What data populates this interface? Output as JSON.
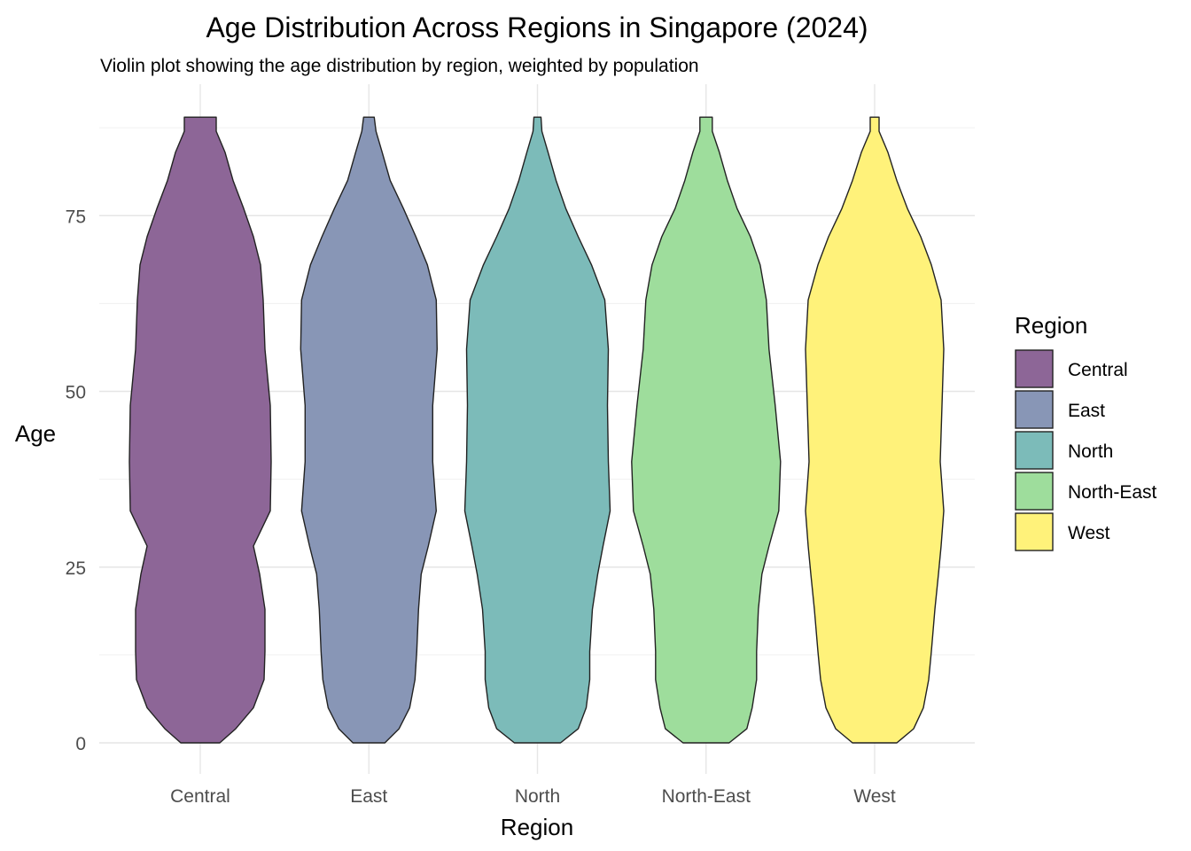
{
  "chart_data": {
    "type": "violin",
    "title": "Age Distribution Across Regions in Singapore (2024)",
    "subtitle": "Violin plot showing the age distribution by region, weighted by population",
    "xlabel": "Region",
    "ylabel": "Age",
    "categories": [
      "Central",
      "East",
      "North",
      "North-East",
      "West"
    ],
    "ylim": [
      -4,
      93
    ],
    "y_range": [
      0,
      89
    ],
    "yticks": [
      0,
      25,
      50,
      75
    ],
    "grid": true,
    "legend": {
      "title": "Region",
      "position": "right"
    },
    "colors": [
      "#8D6697",
      "#8896B6",
      "#7CBBB9",
      "#9EDD9C",
      "#FFF27A"
    ],
    "density_half_width_ages": [
      0,
      2,
      5,
      9,
      13,
      19,
      24,
      28,
      33,
      40,
      48,
      56,
      63,
      68,
      72,
      76,
      80,
      84,
      87,
      89
    ],
    "violins": [
      {
        "name": "Central",
        "half_width": [
          22,
          40,
          60,
          72,
          73,
          73,
          67,
          60,
          79,
          80,
          79,
          73,
          71,
          68,
          60,
          49,
          37,
          28,
          18,
          18
        ]
      },
      {
        "name": "East",
        "half_width": [
          18,
          34,
          46,
          52,
          54,
          56,
          59,
          67,
          76,
          72,
          72,
          77,
          76,
          66,
          53,
          39,
          24,
          15,
          8,
          6
        ]
      },
      {
        "name": "North",
        "half_width": [
          26,
          46,
          55,
          59,
          59,
          62,
          68,
          74,
          82,
          80,
          79,
          80,
          76,
          61,
          46,
          32,
          21,
          12,
          5,
          4
        ]
      },
      {
        "name": "North-East",
        "half_width": [
          26,
          46,
          52,
          57,
          57,
          59,
          63,
          71,
          82,
          84,
          78,
          71,
          68,
          61,
          50,
          35,
          24,
          15,
          7,
          7
        ]
      },
      {
        "name": "West",
        "half_width": [
          25,
          44,
          55,
          61,
          64,
          68,
          72,
          75,
          78,
          74,
          76,
          78,
          75,
          64,
          52,
          37,
          25,
          15,
          5,
          5
        ]
      }
    ]
  }
}
